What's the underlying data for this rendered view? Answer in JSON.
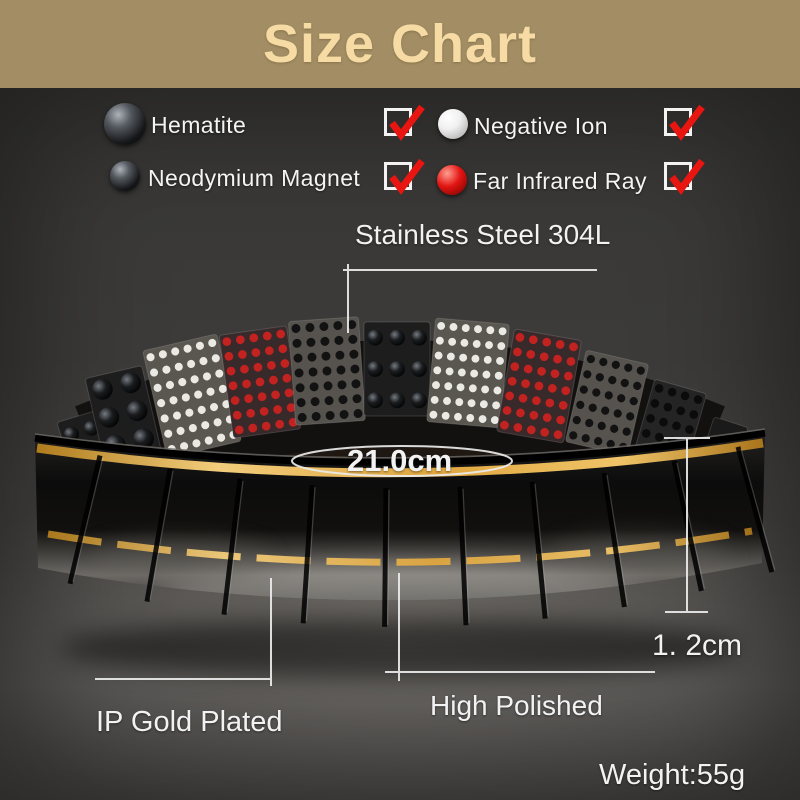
{
  "banner": {
    "title": "Size Chart"
  },
  "features": [
    {
      "label": "Hematite",
      "icon": "hematite-ball",
      "checked": true
    },
    {
      "label": "Neodymium Magnet",
      "icon": "neodymium-magnet-ball",
      "checked": true
    },
    {
      "label": "Negative Ion",
      "icon": "negative-ion-ball",
      "checked": true
    },
    {
      "label": "Far Infrared Ray",
      "icon": "far-infrared-ray-ball",
      "checked": true
    }
  ],
  "callouts": {
    "material": "Stainless Steel 304L",
    "length": "21.0cm",
    "band_width": "1. 2cm",
    "plating": "IP Gold Plated",
    "finish": "High Polished",
    "weight": "Weight:55g"
  },
  "colors": {
    "banner_bg": "#a28d64",
    "banner_text": "#f6dba4",
    "check_red": "#e81511",
    "gold_accent": "#e3aa45",
    "white_dot": "#ebe9e4",
    "red_dot": "#c32320",
    "background_gray": "#3a3938"
  }
}
